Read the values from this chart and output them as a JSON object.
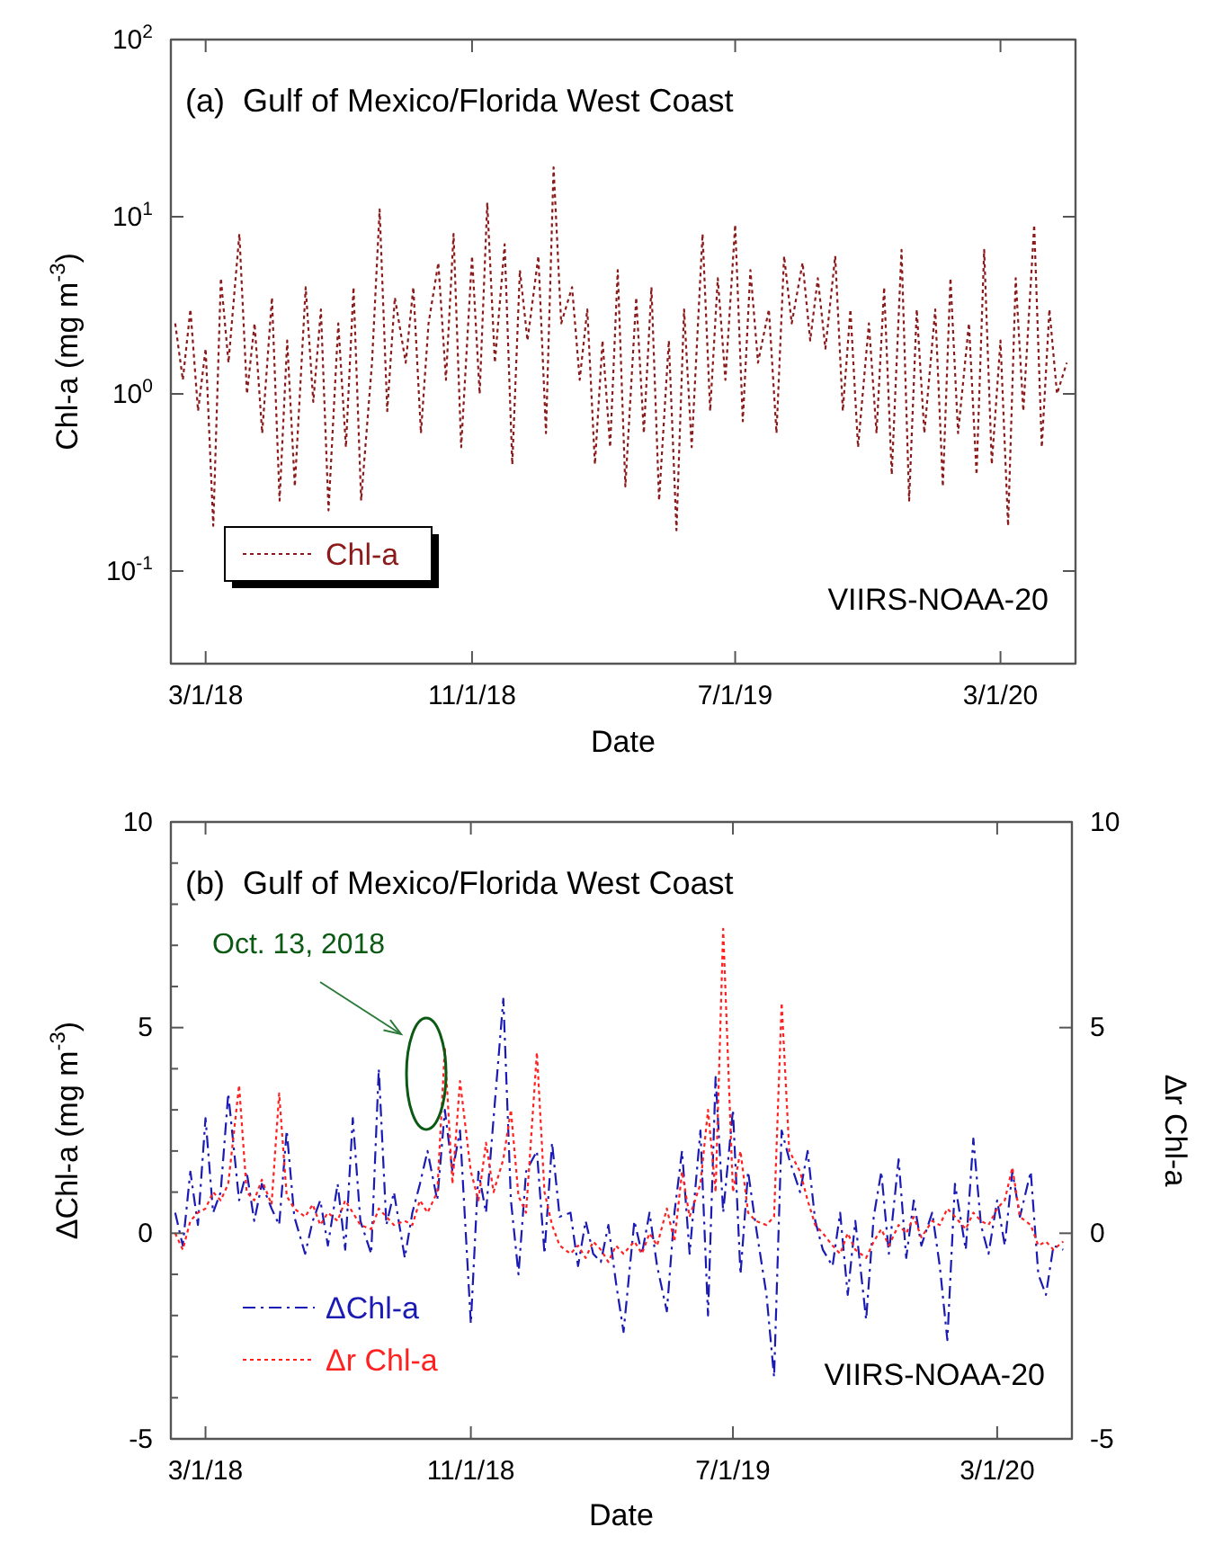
{
  "chart_data": [
    {
      "type": "line",
      "title": "(a)  Gulf of Mexico/Florida West Coast",
      "xlabel": "Date",
      "ylabel": "Chl-a (mg m$^{-3}$)",
      "log": "y",
      "legend": "bottom left",
      "grid": false,
      "x": [
        "2018-02-01",
        "2018-02-08",
        "2018-02-15",
        "2018-02-22",
        "2018-03-01",
        "2018-03-08",
        "2018-03-15",
        "2018-03-22",
        "2018-04-01",
        "2018-04-08",
        "2018-04-15",
        "2018-04-22",
        "2018-05-01",
        "2018-05-08",
        "2018-05-15",
        "2018-05-22",
        "2018-06-01",
        "2018-06-08",
        "2018-06-15",
        "2018-06-22",
        "2018-07-01",
        "2018-07-08",
        "2018-07-15",
        "2018-07-22",
        "2018-08-01",
        "2018-08-08",
        "2018-08-15",
        "2018-08-22",
        "2018-09-01",
        "2018-09-08",
        "2018-09-15",
        "2018-09-22",
        "2018-10-01",
        "2018-10-08",
        "2018-10-15",
        "2018-10-22",
        "2018-11-01",
        "2018-11-08",
        "2018-11-15",
        "2018-11-22",
        "2018-12-01",
        "2018-12-08",
        "2018-12-15",
        "2018-12-22",
        "2019-01-01",
        "2019-01-08",
        "2019-01-15",
        "2019-01-22",
        "2019-02-01",
        "2019-02-08",
        "2019-02-15",
        "2019-02-22",
        "2019-03-01",
        "2019-03-08",
        "2019-03-15",
        "2019-03-22",
        "2019-04-01",
        "2019-04-08",
        "2019-04-15",
        "2019-04-22",
        "2019-05-01",
        "2019-05-08",
        "2019-05-15",
        "2019-05-22",
        "2019-06-01",
        "2019-06-08",
        "2019-06-15",
        "2019-06-22",
        "2019-07-01",
        "2019-07-08",
        "2019-07-15",
        "2019-07-22",
        "2019-08-01",
        "2019-08-08",
        "2019-08-15",
        "2019-08-22",
        "2019-09-01",
        "2019-09-08",
        "2019-09-15",
        "2019-09-22",
        "2019-10-01",
        "2019-10-08",
        "2019-10-15",
        "2019-10-22",
        "2019-11-01",
        "2019-11-08",
        "2019-11-15",
        "2019-11-22",
        "2019-12-01",
        "2019-12-08",
        "2019-12-15",
        "2019-12-22",
        "2020-01-01",
        "2020-01-08",
        "2020-01-15",
        "2020-01-22",
        "2020-02-01",
        "2020-02-08",
        "2020-02-15",
        "2020-02-22",
        "2020-03-01",
        "2020-03-08",
        "2020-03-15",
        "2020-03-22",
        "2020-04-01",
        "2020-04-08",
        "2020-04-15",
        "2020-04-22",
        "2020-05-01"
      ],
      "xlim": [
        "2018-01-28",
        "2020-05-09"
      ],
      "xticks": [
        {
          "value": "2018-03-01",
          "label": "3/1/18"
        },
        {
          "value": "2018-11-01",
          "label": "11/1/18"
        },
        {
          "value": "2019-07-01",
          "label": "7/1/19"
        },
        {
          "value": "2020-03-01",
          "label": "3/1/20"
        }
      ],
      "ylim": [
        0.03,
        100
      ],
      "yticks": [
        {
          "value": 0.1,
          "label": "10$^{-1}$"
        },
        {
          "value": 1,
          "label": "10$^{0}$"
        },
        {
          "value": 10,
          "label": "10$^{1}$"
        },
        {
          "value": 100,
          "label": "10$^{2}$"
        }
      ],
      "series": [
        {
          "name": "Chl-a",
          "color": "#8b1a1a",
          "line_style": "dotted",
          "values": [
            2.5,
            1.2,
            3.0,
            0.8,
            1.8,
            0.18,
            4.5,
            1.5,
            8.0,
            1.0,
            2.5,
            0.6,
            3.5,
            0.25,
            2.0,
            0.3,
            4.0,
            0.9,
            3.0,
            0.22,
            2.5,
            0.5,
            4.0,
            0.25,
            1.5,
            11.0,
            0.8,
            3.5,
            1.5,
            4.0,
            0.6,
            2.5,
            5.5,
            1.2,
            8.0,
            0.5,
            6.0,
            1.0,
            12.0,
            1.5,
            7.0,
            0.4,
            5.0,
            2.0,
            6.0,
            0.6,
            19.0,
            2.5,
            4.0,
            1.2,
            3.0,
            0.4,
            2.0,
            0.5,
            5.0,
            0.3,
            3.5,
            0.6,
            4.0,
            0.25,
            2.0,
            0.17,
            3.0,
            0.5,
            8.0,
            0.8,
            4.5,
            1.2,
            9.0,
            0.7,
            5.0,
            1.5,
            3.0,
            0.6,
            6.0,
            2.5,
            5.5,
            2.0,
            4.5,
            1.8,
            6.0,
            0.8,
            3.0,
            0.5,
            2.5,
            0.6,
            4.0,
            0.35,
            6.5,
            0.25,
            3.0,
            0.6,
            3.0,
            0.3,
            4.5,
            0.6,
            2.5,
            0.35,
            6.5,
            0.4,
            2.0,
            0.18,
            4.5,
            0.8,
            9.0,
            0.5,
            3.0,
            1.0,
            1.5
          ]
        }
      ],
      "annotations": [
        "VIIRS-NOAA-20"
      ]
    },
    {
      "type": "line",
      "title": "(b)  Gulf of Mexico/Florida West Coast",
      "xlabel": "Date",
      "ylabel": "ΔChl-a (mg m$^{-3}$)",
      "y2label": "Δr Chl-a",
      "legend": "bottom left",
      "grid": false,
      "x": [
        "2018-02-01",
        "2018-02-08",
        "2018-02-15",
        "2018-02-22",
        "2018-03-01",
        "2018-03-08",
        "2018-03-15",
        "2018-03-22",
        "2018-04-01",
        "2018-04-08",
        "2018-04-15",
        "2018-04-22",
        "2018-05-01",
        "2018-05-08",
        "2018-05-15",
        "2018-05-22",
        "2018-06-01",
        "2018-06-08",
        "2018-06-15",
        "2018-06-22",
        "2018-07-01",
        "2018-07-08",
        "2018-07-15",
        "2018-07-22",
        "2018-08-01",
        "2018-08-08",
        "2018-08-15",
        "2018-08-22",
        "2018-09-01",
        "2018-09-08",
        "2018-09-15",
        "2018-09-22",
        "2018-10-01",
        "2018-10-08",
        "2018-10-15",
        "2018-10-22",
        "2018-11-01",
        "2018-11-08",
        "2018-11-15",
        "2018-11-22",
        "2018-12-01",
        "2018-12-08",
        "2018-12-15",
        "2018-12-22",
        "2019-01-01",
        "2019-01-08",
        "2019-01-15",
        "2019-01-22",
        "2019-02-01",
        "2019-02-08",
        "2019-02-15",
        "2019-02-22",
        "2019-03-01",
        "2019-03-08",
        "2019-03-15",
        "2019-03-22",
        "2019-04-01",
        "2019-04-08",
        "2019-04-15",
        "2019-04-22",
        "2019-05-01",
        "2019-05-08",
        "2019-05-15",
        "2019-05-22",
        "2019-06-01",
        "2019-06-08",
        "2019-06-15",
        "2019-06-22",
        "2019-07-01",
        "2019-07-08",
        "2019-07-15",
        "2019-07-22",
        "2019-08-01",
        "2019-08-08",
        "2019-08-15",
        "2019-08-22",
        "2019-09-01",
        "2019-09-08",
        "2019-09-15",
        "2019-09-22",
        "2019-10-01",
        "2019-10-08",
        "2019-10-15",
        "2019-10-22",
        "2019-11-01",
        "2019-11-08",
        "2019-11-15",
        "2019-11-22",
        "2019-12-01",
        "2019-12-08",
        "2019-12-15",
        "2019-12-22",
        "2020-01-01",
        "2020-01-08",
        "2020-01-15",
        "2020-01-22",
        "2020-02-01",
        "2020-02-08",
        "2020-02-15",
        "2020-02-22",
        "2020-03-01",
        "2020-03-08",
        "2020-03-15",
        "2020-03-22",
        "2020-04-01",
        "2020-04-08",
        "2020-04-15",
        "2020-04-22",
        "2020-05-01"
      ],
      "xlim": [
        "2018-01-28",
        "2020-05-09"
      ],
      "xticks": [
        {
          "value": "2018-03-01",
          "label": "3/1/18"
        },
        {
          "value": "2018-11-01",
          "label": "11/1/18"
        },
        {
          "value": "2019-07-01",
          "label": "7/1/19"
        },
        {
          "value": "2020-03-01",
          "label": "3/1/20"
        }
      ],
      "ylim": [
        -5,
        10
      ],
      "yticks": [
        -5,
        {
          "value": -4,
          "label": null
        },
        {
          "value": -3,
          "label": null
        },
        {
          "value": -2,
          "label": null
        },
        {
          "value": -1,
          "label": null
        },
        0,
        {
          "value": 1,
          "label": null
        },
        {
          "value": 2,
          "label": null
        },
        {
          "value": 3,
          "label": null
        },
        {
          "value": 4,
          "label": null
        },
        5,
        {
          "value": 6,
          "label": null
        },
        {
          "value": 7,
          "label": null
        },
        {
          "value": 8,
          "label": null
        },
        {
          "value": 9,
          "label": null
        },
        10
      ],
      "y2lim": [
        -5,
        10
      ],
      "y2ticks": [
        -5,
        0,
        5,
        10
      ],
      "series": [
        {
          "name": "ΔChl-a",
          "color": "#1a1ab4",
          "line_style": "dashdot",
          "values": [
            0.5,
            -0.3,
            1.5,
            0.2,
            2.8,
            0.5,
            1.0,
            3.4,
            0.8,
            1.5,
            0.3,
            1.2,
            0.6,
            0.2,
            2.5,
            0.4,
            -0.5,
            0.3,
            0.8,
            -0.3,
            1.2,
            -0.4,
            2.8,
            0.3,
            -0.5,
            4.0,
            0.2,
            1.0,
            -0.6,
            0.5,
            1.2,
            2.0,
            0.8,
            3.0,
            1.5,
            2.5,
            -2.2,
            1.5,
            0.5,
            2.8,
            5.7,
            0.8,
            -1.0,
            1.5,
            2.0,
            -0.5,
            2.2,
            0.4,
            0.5,
            -0.8,
            0.3,
            -0.5,
            -0.7,
            0.2,
            -1.2,
            -2.4,
            0.3,
            -0.5,
            0.5,
            -0.8,
            -1.9,
            0.5,
            2.0,
            -0.5,
            2.5,
            -2.0,
            3.8,
            0.5,
            3.0,
            -1.0,
            1.5,
            0.2,
            -1.5,
            -3.5,
            2.5,
            1.8,
            1.0,
            2.0,
            0.3,
            -0.4,
            -0.8,
            0.5,
            -1.5,
            0.3,
            -2.1,
            0.4,
            1.5,
            -0.5,
            1.8,
            -0.6,
            0.8,
            -0.3,
            0.5,
            -0.8,
            -2.6,
            1.2,
            -0.4,
            2.3,
            0.2,
            -0.5,
            0.8,
            -0.3,
            1.5,
            0.4,
            1.5,
            -1.0,
            -1.5,
            -0.3,
            -0.4
          ]
        },
        {
          "name": "Δr Chl-a",
          "color": "#ff2020",
          "line_style": "dotted",
          "values": [
            0.0,
            -0.4,
            0.3,
            0.5,
            0.6,
            1.0,
            0.8,
            1.2,
            3.6,
            1.0,
            0.8,
            1.3,
            0.7,
            3.4,
            0.9,
            0.6,
            0.4,
            0.7,
            0.2,
            0.5,
            0.3,
            0.8,
            0.5,
            0.2,
            0.1,
            0.6,
            0.4,
            0.2,
            0.3,
            0.2,
            0.8,
            0.5,
            1.0,
            4.5,
            1.2,
            3.7,
            1.5,
            0.8,
            2.2,
            1.0,
            1.8,
            3.0,
            0.9,
            0.5,
            4.4,
            1.0,
            0.2,
            -0.3,
            -0.5,
            -0.3,
            -0.6,
            -0.2,
            -0.4,
            -0.7,
            -0.3,
            -0.5,
            -0.2,
            -0.5,
            0.0,
            -0.3,
            0.6,
            -0.2,
            1.5,
            0.4,
            1.2,
            3.0,
            1.0,
            7.4,
            1.0,
            2.0,
            0.5,
            0.3,
            0.2,
            0.4,
            5.6,
            2.0,
            1.5,
            0.8,
            0.2,
            0.0,
            -0.3,
            -0.5,
            0.0,
            -0.4,
            -0.6,
            -0.2,
            0.1,
            -0.3,
            0.2,
            0.0,
            0.4,
            -0.1,
            0.3,
            0.2,
            0.6,
            0.4,
            0.1,
            0.5,
            0.3,
            0.2,
            0.6,
            0.8,
            1.6,
            0.4,
            0.2,
            -0.3,
            -0.2,
            -0.4,
            -0.2
          ]
        }
      ],
      "annotations": [
        "Oct. 13, 2018",
        "VIIRS-NOAA-20"
      ]
    }
  ]
}
